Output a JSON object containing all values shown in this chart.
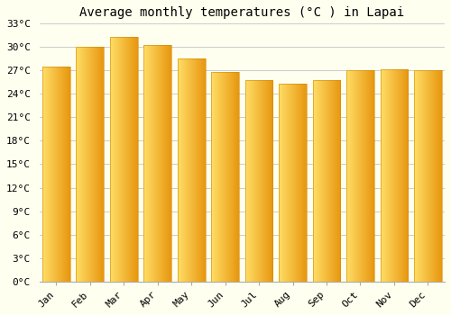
{
  "title": "Average monthly temperatures (°C ) in Lapai",
  "months": [
    "Jan",
    "Feb",
    "Mar",
    "Apr",
    "May",
    "Jun",
    "Jul",
    "Aug",
    "Sep",
    "Oct",
    "Nov",
    "Dec"
  ],
  "temperatures": [
    27.5,
    30.0,
    31.3,
    30.3,
    28.5,
    26.8,
    25.8,
    25.3,
    25.8,
    27.0,
    27.1,
    27.0
  ],
  "bar_color_left": "#FFD966",
  "bar_color_mid": "#FFBB33",
  "bar_color_right": "#E8950A",
  "bg_color": "#FFFFF0",
  "plot_bg_color": "#FFFFF5",
  "grid_color": "#cccccc",
  "ylim": [
    0,
    33
  ],
  "yticks": [
    0,
    3,
    6,
    9,
    12,
    15,
    18,
    21,
    24,
    27,
    30,
    33
  ],
  "ytick_labels": [
    "0°C",
    "3°C",
    "6°C",
    "9°C",
    "12°C",
    "15°C",
    "18°C",
    "21°C",
    "24°C",
    "27°C",
    "30°C",
    "33°C"
  ],
  "title_fontsize": 10,
  "tick_fontsize": 8
}
